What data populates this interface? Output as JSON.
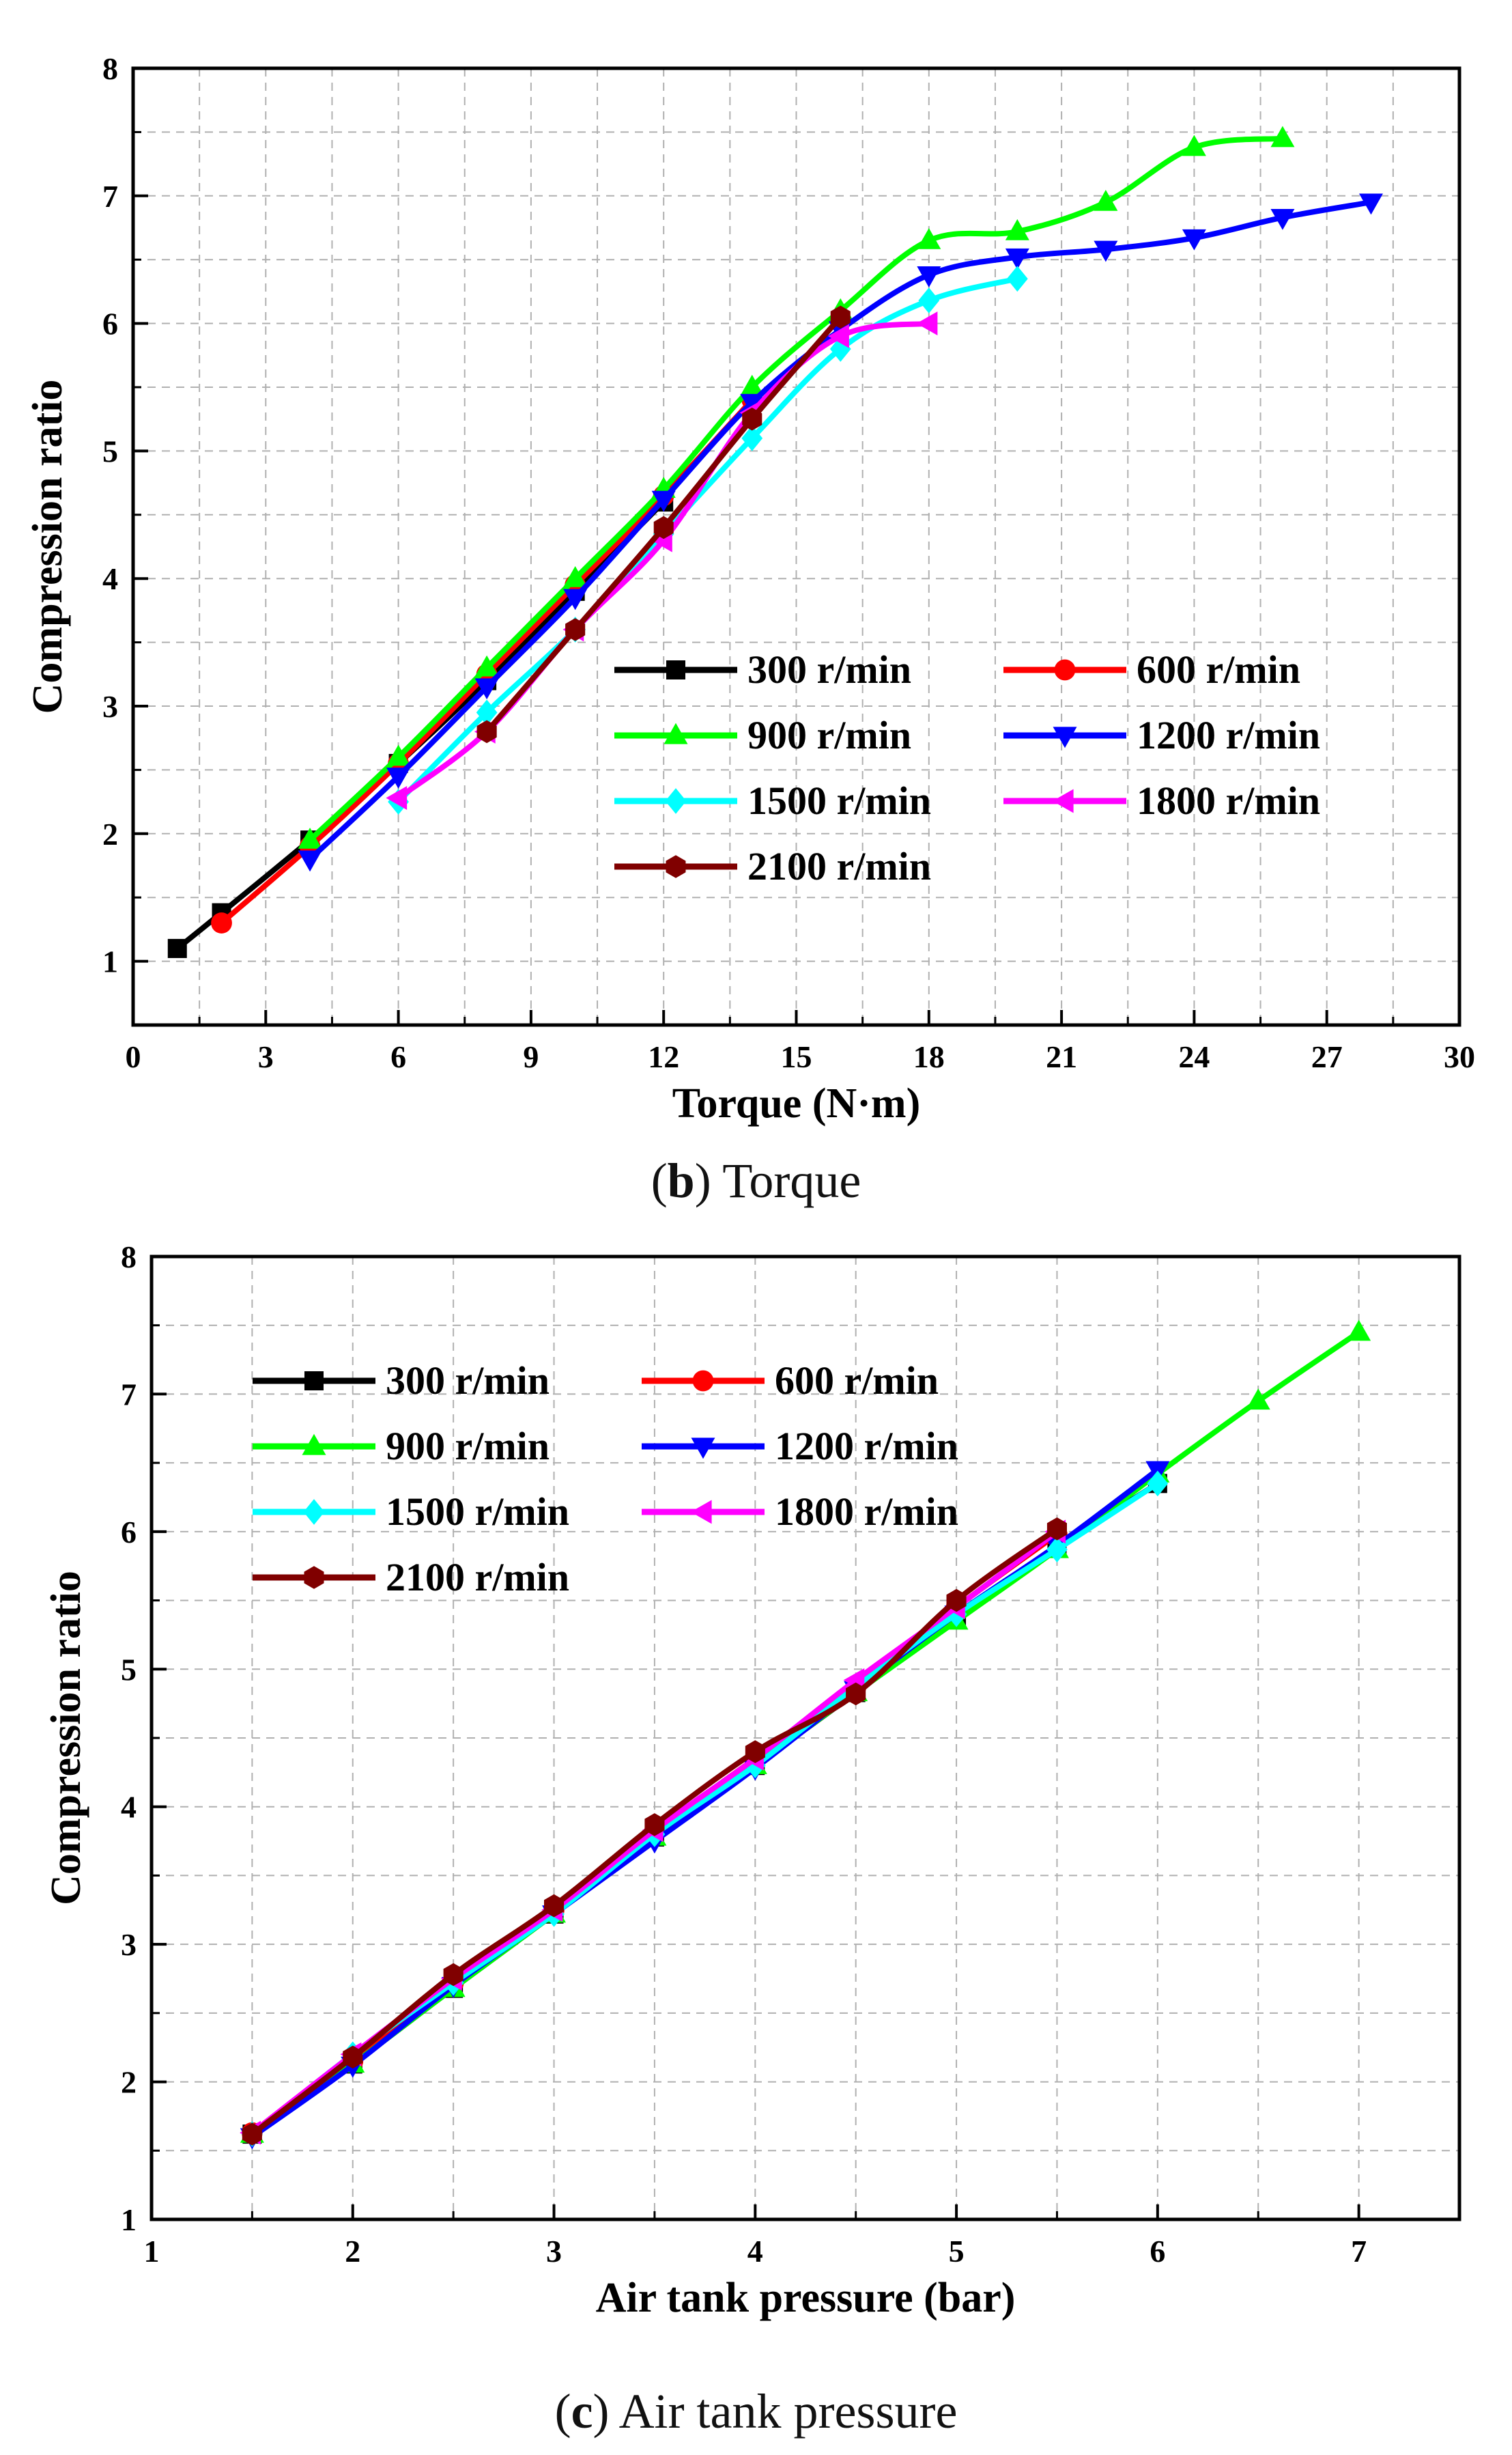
{
  "chart_data": [
    {
      "id": "b",
      "type": "line",
      "caption_letter": "b",
      "caption_text": "Torque",
      "caption_open": "(",
      "caption_close": ")",
      "xlabel": "Torque (N·m)",
      "ylabel": "Compression ratio",
      "xlim": [
        0,
        30
      ],
      "ylim": [
        0.5,
        8
      ],
      "xticks": [
        0,
        3,
        6,
        9,
        12,
        15,
        18,
        21,
        24,
        27,
        30
      ],
      "yticks": [
        1,
        2,
        3,
        4,
        5,
        6,
        7,
        8
      ],
      "grid": true,
      "legend_position": "bottom-right",
      "series": [
        {
          "name": "300 r/min",
          "color": "#000000",
          "marker": "square",
          "x": [
            1,
            2,
            4,
            6,
            8,
            10,
            12
          ],
          "y": [
            1.1,
            1.38,
            1.95,
            2.55,
            3.2,
            3.9,
            4.6
          ]
        },
        {
          "name": "600 r/min",
          "color": "#ff0000",
          "marker": "circle",
          "x": [
            2,
            4,
            6,
            8,
            10,
            12,
            14
          ],
          "y": [
            1.3,
            1.9,
            2.55,
            3.25,
            3.95,
            4.65,
            5.4
          ]
        },
        {
          "name": "900 r/min",
          "color": "#00ff00",
          "marker": "triangle-up",
          "x": [
            4,
            6,
            8,
            10,
            12,
            14,
            16,
            18,
            20,
            22,
            24,
            26
          ],
          "y": [
            1.95,
            2.6,
            3.3,
            4.0,
            4.7,
            5.5,
            6.1,
            6.65,
            6.72,
            6.95,
            7.38,
            7.45
          ]
        },
        {
          "name": "1200 r/min",
          "color": "#0000ff",
          "marker": "triangle-down",
          "x": [
            4,
            6,
            8,
            10,
            12,
            14,
            16,
            18,
            20,
            22,
            24,
            26,
            28
          ],
          "y": [
            1.8,
            2.45,
            3.15,
            3.85,
            4.62,
            5.38,
            5.95,
            6.38,
            6.52,
            6.58,
            6.67,
            6.83,
            6.95
          ]
        },
        {
          "name": "1500 r/min",
          "color": "#00ffff",
          "marker": "diamond",
          "x": [
            6,
            8,
            10,
            12,
            14,
            16,
            18,
            20
          ],
          "y": [
            2.25,
            2.95,
            3.6,
            4.35,
            5.1,
            5.8,
            6.18,
            6.35
          ]
        },
        {
          "name": "1800 r/min",
          "color": "#ff00ff",
          "marker": "triangle-left",
          "x": [
            6,
            8,
            10,
            12,
            14,
            16,
            18
          ],
          "y": [
            2.28,
            2.8,
            3.6,
            4.3,
            5.3,
            5.9,
            6.0
          ]
        },
        {
          "name": "2100 r/min",
          "color": "#800000",
          "marker": "hexagon",
          "x": [
            8,
            10,
            12,
            14,
            16
          ],
          "y": [
            2.8,
            3.6,
            4.4,
            5.25,
            6.05
          ]
        }
      ]
    },
    {
      "id": "c",
      "type": "line",
      "caption_letter": "c",
      "caption_text": "Air tank pressure",
      "caption_open": "(",
      "caption_close": ")",
      "xlabel": "Air tank pressure (bar)",
      "ylabel": "Compression ratio",
      "xlim": [
        1,
        7.5
      ],
      "ylim": [
        1,
        8
      ],
      "xticks": [
        1,
        2,
        3,
        4,
        5,
        6,
        7
      ],
      "yticks": [
        1,
        2,
        3,
        4,
        5,
        6,
        7,
        8
      ],
      "grid": true,
      "legend_position": "top-left",
      "series": [
        {
          "name": "300 r/min",
          "color": "#000000",
          "marker": "square",
          "x": [
            1.5,
            2,
            2.5,
            3,
            3.5,
            4,
            4.5,
            5,
            5.5,
            6
          ],
          "y": [
            1.62,
            2.13,
            2.68,
            3.22,
            3.78,
            4.3,
            4.83,
            5.38,
            5.88,
            6.35
          ]
        },
        {
          "name": "600 r/min",
          "color": "#ff0000",
          "marker": "circle",
          "x": [
            1.5,
            2,
            2.5,
            3,
            3.5,
            4,
            4.5,
            5,
            5.5
          ],
          "y": [
            1.63,
            2.15,
            2.72,
            3.25,
            3.82,
            4.35,
            4.87,
            5.45,
            5.98
          ]
        },
        {
          "name": "900 r/min",
          "color": "#00ff00",
          "marker": "triangle-up",
          "x": [
            1.5,
            2,
            2.5,
            3,
            3.5,
            4,
            4.5,
            5,
            5.5,
            6,
            6.5,
            7
          ],
          "y": [
            1.62,
            2.13,
            2.68,
            3.22,
            3.78,
            4.3,
            4.83,
            5.35,
            5.87,
            6.42,
            6.95,
            7.45
          ]
        },
        {
          "name": "1200 r/min",
          "color": "#0000ff",
          "marker": "triangle-down",
          "x": [
            1.5,
            2,
            2.5,
            3,
            3.5,
            4,
            4.5,
            5,
            5.5,
            6
          ],
          "y": [
            1.6,
            2.12,
            2.7,
            3.22,
            3.75,
            4.28,
            4.85,
            5.4,
            5.9,
            6.45
          ]
        },
        {
          "name": "1500 r/min",
          "color": "#00ffff",
          "marker": "diamond",
          "x": [
            1.5,
            2,
            2.5,
            3,
            3.5,
            4,
            4.5,
            5,
            5.5,
            6
          ],
          "y": [
            1.62,
            2.2,
            2.72,
            3.22,
            3.8,
            4.3,
            4.87,
            5.4,
            5.87,
            6.35
          ]
        },
        {
          "name": "1800 r/min",
          "color": "#ff00ff",
          "marker": "triangle-left",
          "x": [
            1.5,
            2,
            2.5,
            3,
            3.5,
            4,
            4.5,
            5,
            5.5
          ],
          "y": [
            1.63,
            2.2,
            2.75,
            3.25,
            3.83,
            4.35,
            4.92,
            5.45,
            6.0
          ]
        },
        {
          "name": "2100 r/min",
          "color": "#800000",
          "marker": "hexagon",
          "x": [
            1.5,
            2,
            2.5,
            3,
            3.5,
            4,
            4.5,
            5,
            5.5
          ],
          "y": [
            1.62,
            2.18,
            2.78,
            3.28,
            3.87,
            4.4,
            4.82,
            5.5,
            6.02
          ]
        }
      ]
    }
  ]
}
